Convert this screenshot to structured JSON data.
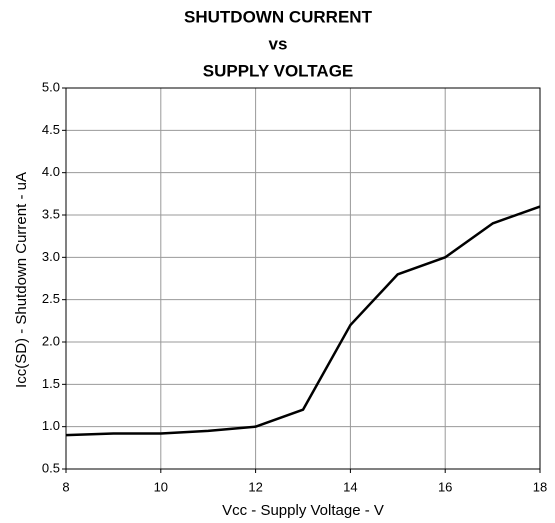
{
  "chart_data": {
    "type": "line",
    "title": [
      "SHUTDOWN CURRENT",
      "vs",
      "SUPPLY VOLTAGE"
    ],
    "x_label": "Vcc - Supply Voltage - V",
    "y_label": "Icc(SD) - Shutdown Current - uA",
    "x": [
      8,
      9,
      10,
      11,
      12,
      13,
      14,
      15,
      16,
      17,
      18
    ],
    "series": [
      {
        "color": "#000000",
        "values": [
          0.9,
          0.92,
          0.92,
          0.95,
          1.0,
          1.2,
          2.2,
          2.8,
          3.0,
          3.4,
          3.6
        ]
      }
    ],
    "xlim": [
      8,
      18
    ],
    "xticks": [
      8,
      10,
      12,
      14,
      16,
      18
    ],
    "ylim": [
      0.5,
      5.0
    ],
    "yticks": [
      0.5,
      {
        "value": 1,
        "label": "1.0"
      },
      1.5,
      {
        "value": 2,
        "label": "2.0"
      },
      2.5,
      {
        "value": 3,
        "label": "3.0"
      },
      3.5,
      {
        "value": 4,
        "label": "4.0"
      },
      4.5,
      {
        "value": 5,
        "label": "5.0"
      }
    ],
    "grid": true
  }
}
